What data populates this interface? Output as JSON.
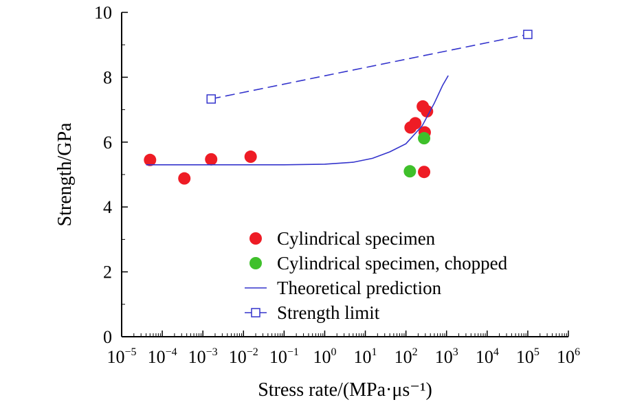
{
  "chart_data": {
    "type": "scatter",
    "xlabel": "Stress rate/(MPa·μs⁻¹)",
    "ylabel": "Strength/GPa",
    "x_scale": "log",
    "xlim": [
      1e-05,
      1000000
    ],
    "ylim": [
      0,
      10
    ],
    "x_ticks": [
      {
        "base": "10",
        "exp": "−5",
        "value": 1e-05
      },
      {
        "base": "10",
        "exp": "−4",
        "value": 0.0001
      },
      {
        "base": "10",
        "exp": "−3",
        "value": 0.001
      },
      {
        "base": "10",
        "exp": "−2",
        "value": 0.01
      },
      {
        "base": "10",
        "exp": "−1",
        "value": 0.1
      },
      {
        "base": "10",
        "exp": "0",
        "value": 1
      },
      {
        "base": "10",
        "exp": "1",
        "value": 10
      },
      {
        "base": "10",
        "exp": "2",
        "value": 100
      },
      {
        "base": "10",
        "exp": "3",
        "value": 1000
      },
      {
        "base": "10",
        "exp": "4",
        "value": 10000
      },
      {
        "base": "10",
        "exp": "5",
        "value": 100000
      },
      {
        "base": "10",
        "exp": "6",
        "value": 1000000
      }
    ],
    "y_ticks": [
      {
        "label": "0",
        "value": 0
      },
      {
        "label": "2",
        "value": 2
      },
      {
        "label": "4",
        "value": 4
      },
      {
        "label": "6",
        "value": 6
      },
      {
        "label": "8",
        "value": 8
      },
      {
        "label": "10",
        "value": 10
      }
    ],
    "grid": false,
    "legend_position": "bottom-right",
    "series": [
      {
        "name": "Cylindrical specimen",
        "kind": "scatter",
        "marker": "circle",
        "color": "#ee1c25",
        "points": [
          {
            "x": 5e-05,
            "y": 5.45
          },
          {
            "x": 0.00035,
            "y": 4.88
          },
          {
            "x": 0.0016,
            "y": 5.47
          },
          {
            "x": 0.015,
            "y": 5.55
          },
          {
            "x": 130,
            "y": 6.45
          },
          {
            "x": 170,
            "y": 6.58
          },
          {
            "x": 260,
            "y": 7.1
          },
          {
            "x": 330,
            "y": 6.95
          },
          {
            "x": 290,
            "y": 6.3
          },
          {
            "x": 280,
            "y": 5.08
          }
        ]
      },
      {
        "name": "Cylindrical specimen, chopped",
        "kind": "scatter",
        "marker": "circle",
        "color": "#3fc02b",
        "points": [
          {
            "x": 125,
            "y": 5.1
          },
          {
            "x": 280,
            "y": 6.12
          }
        ]
      },
      {
        "name": "Theoretical prediction",
        "kind": "line",
        "color": "#3333cc",
        "points": [
          {
            "x": 4e-05,
            "y": 5.3
          },
          {
            "x": 0.001,
            "y": 5.3
          },
          {
            "x": 0.1,
            "y": 5.3
          },
          {
            "x": 1,
            "y": 5.32
          },
          {
            "x": 5,
            "y": 5.38
          },
          {
            "x": 15,
            "y": 5.5
          },
          {
            "x": 40,
            "y": 5.7
          },
          {
            "x": 100,
            "y": 5.95
          },
          {
            "x": 250,
            "y": 6.5
          },
          {
            "x": 500,
            "y": 7.2
          },
          {
            "x": 800,
            "y": 7.75
          },
          {
            "x": 1100,
            "y": 8.05
          }
        ]
      },
      {
        "name": "Strength limit",
        "kind": "line-dashed",
        "marker": "square-open",
        "color": "#3333cc",
        "points": [
          {
            "x": 0.0016,
            "y": 7.33
          },
          {
            "x": 100000,
            "y": 9.32
          }
        ]
      }
    ]
  }
}
